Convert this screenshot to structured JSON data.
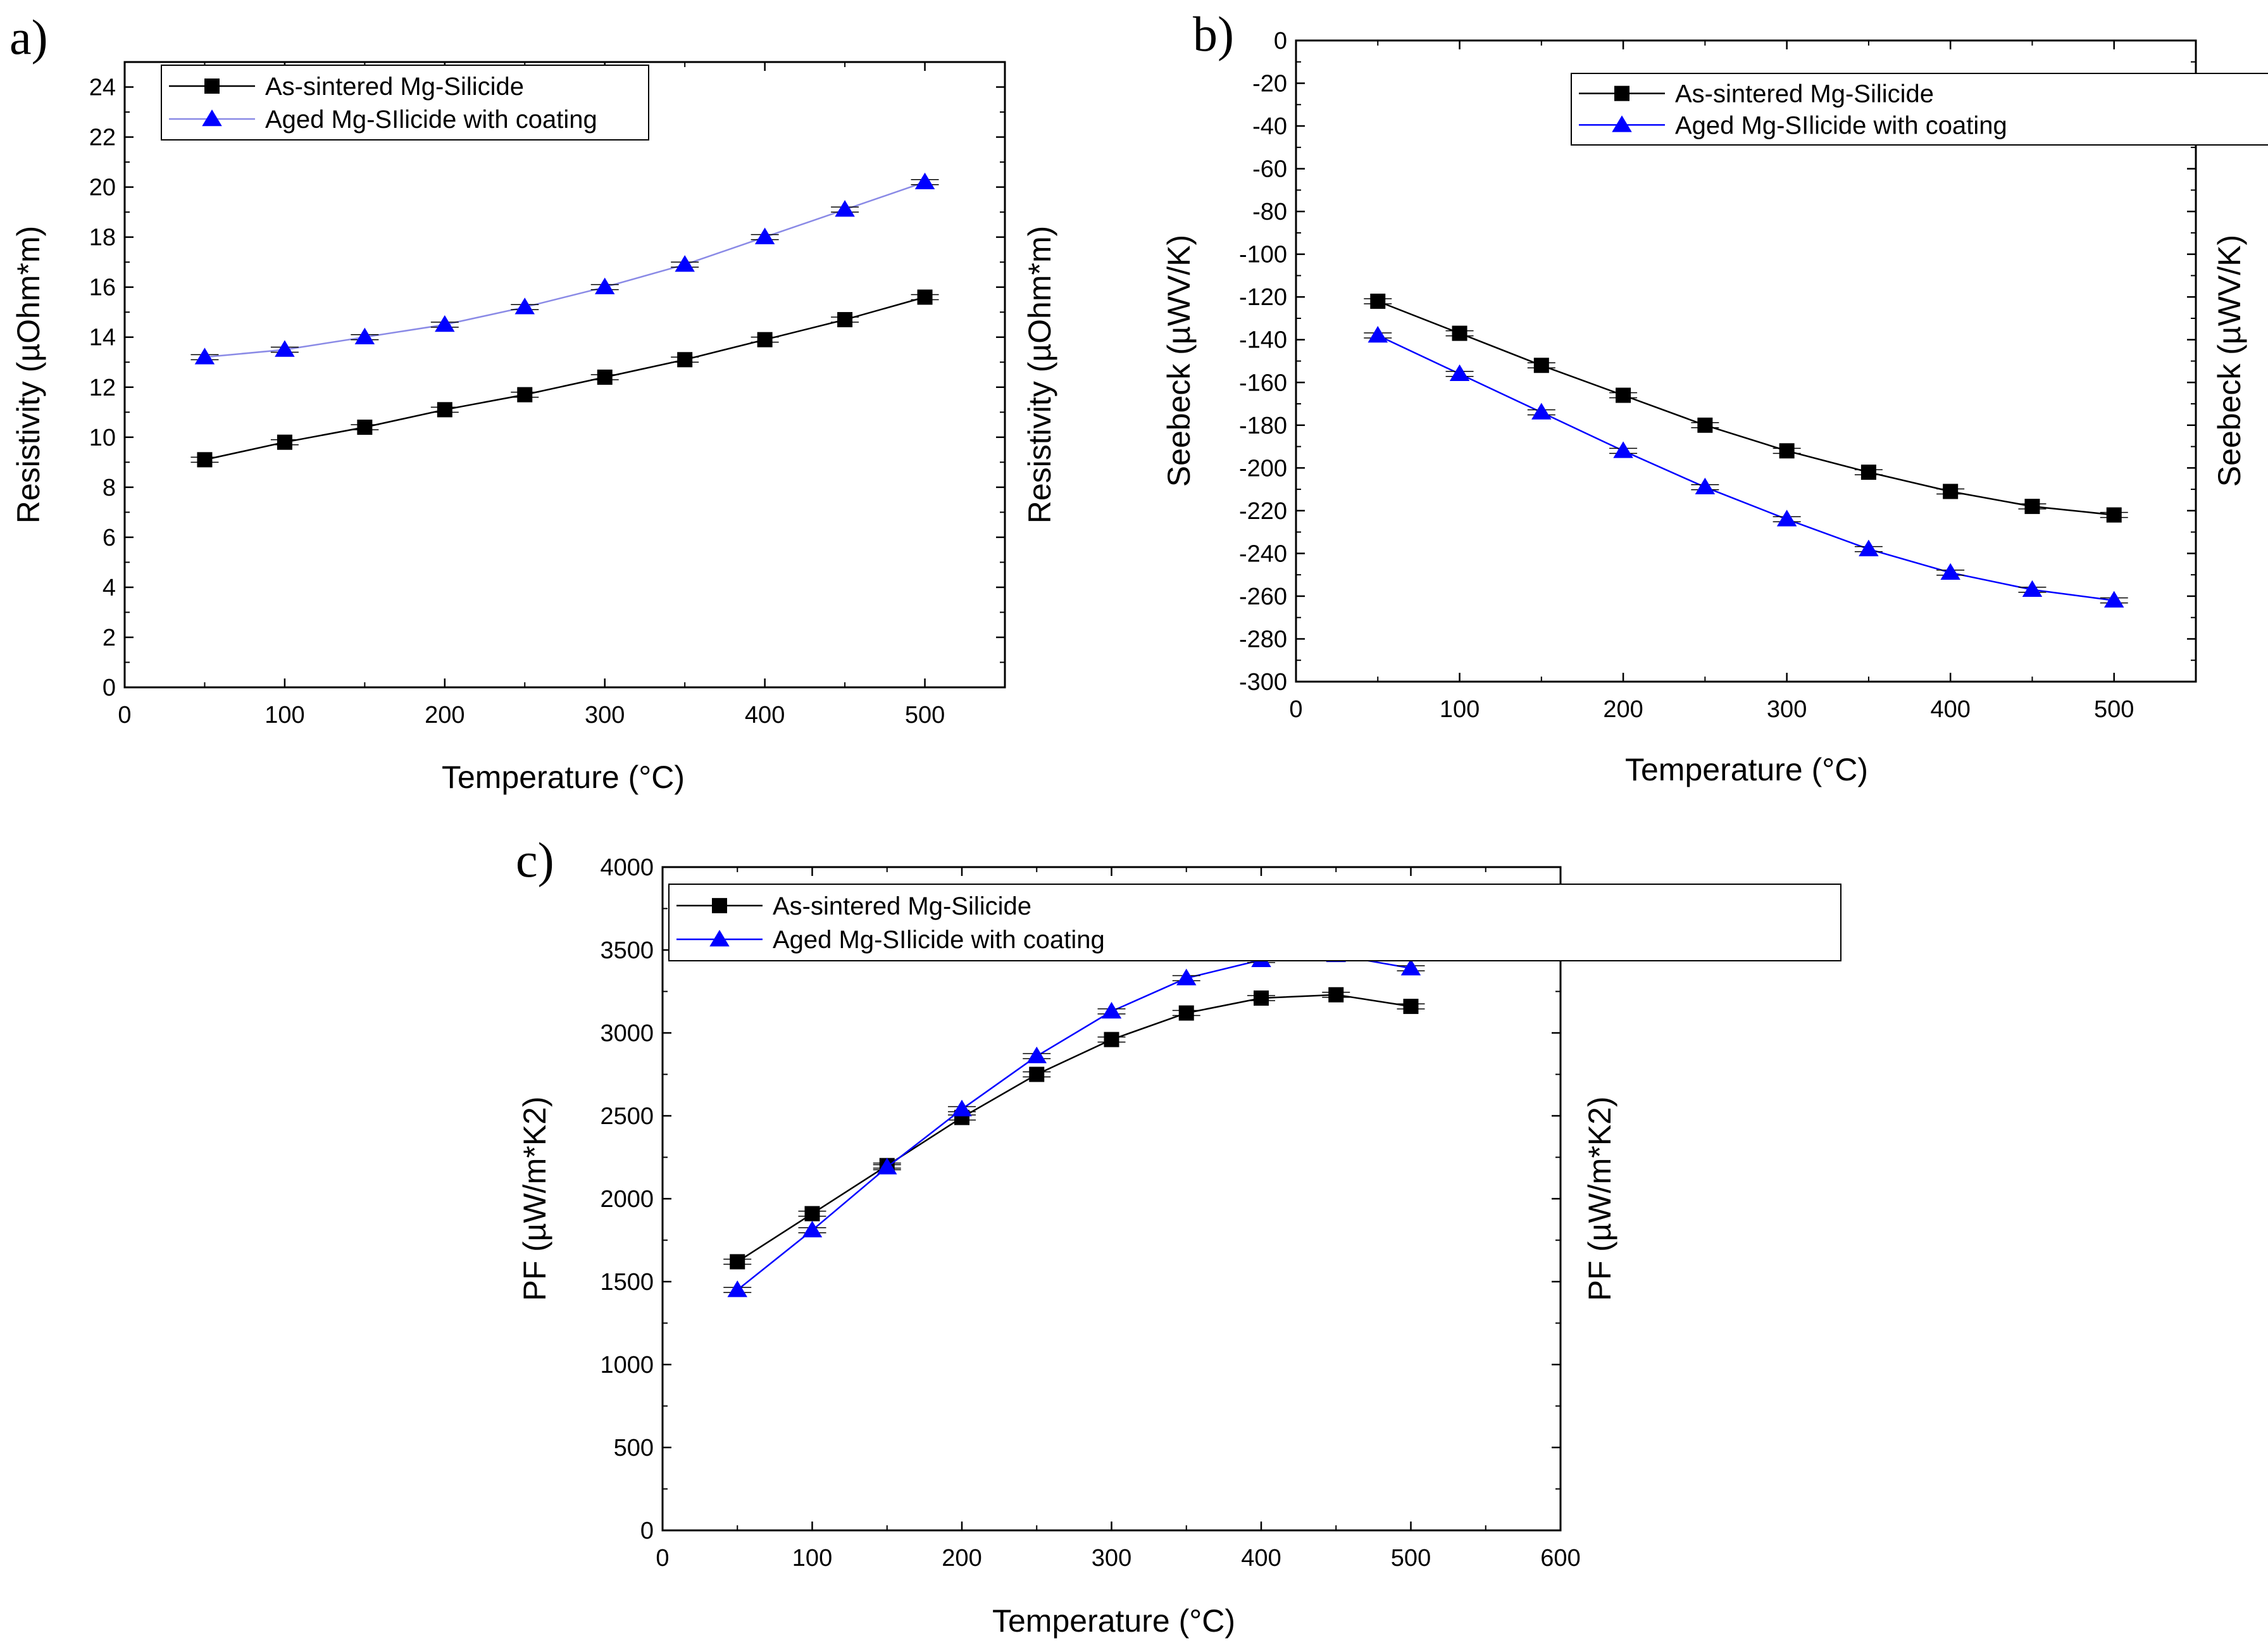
{
  "chart_data": [
    {
      "panel": "a)",
      "type": "line",
      "xlabel": "Temperature (°C)",
      "ylabel": "Resistivity (µOhm*m)",
      "ylabel_right": "Resistivity (µOhm*m)",
      "xlim": [
        0,
        550
      ],
      "ylim": [
        0,
        25
      ],
      "xticks": [
        0,
        100,
        200,
        300,
        400,
        500
      ],
      "yticks": [
        0,
        2,
        4,
        6,
        8,
        10,
        12,
        14,
        16,
        18,
        20,
        22,
        24
      ],
      "legend_position": "top-left",
      "x": [
        50,
        100,
        150,
        200,
        250,
        300,
        350,
        400,
        450,
        500
      ],
      "series": [
        {
          "name": "As-sintered Mg-Silicide",
          "marker": "square",
          "color": "#000000",
          "values": [
            9.1,
            9.8,
            10.4,
            11.1,
            11.7,
            12.4,
            13.1,
            13.9,
            14.7,
            15.6
          ]
        },
        {
          "name": "Aged Mg-SIlicide with coating",
          "marker": "triangle",
          "color": "#0000ff",
          "line_color": "#8a8ae6",
          "values": [
            13.2,
            13.5,
            14.0,
            14.5,
            15.2,
            16.0,
            16.9,
            18.0,
            19.1,
            20.2
          ]
        }
      ]
    },
    {
      "panel": "b)",
      "type": "line",
      "xlabel": "Temperature (°C)",
      "ylabel": "Seebeck (µWV/K)",
      "ylabel_right": "Seebeck (µWV/K)",
      "xlim": [
        0,
        550
      ],
      "ylim": [
        -300,
        0
      ],
      "xticks": [
        0,
        100,
        200,
        300,
        400,
        500
      ],
      "yticks": [
        0,
        -20,
        -40,
        -60,
        -80,
        -100,
        -120,
        -140,
        -160,
        -180,
        -200,
        -220,
        -240,
        -260,
        -280,
        -300
      ],
      "legend_position": "top-right",
      "x": [
        50,
        100,
        150,
        200,
        250,
        300,
        350,
        400,
        450,
        500
      ],
      "series": [
        {
          "name": "As-sintered Mg-Silicide",
          "marker": "square",
          "color": "#000000",
          "values": [
            -122,
            -137,
            -152,
            -166,
            -180,
            -192,
            -202,
            -211,
            -218,
            -222
          ]
        },
        {
          "name": "Aged Mg-SIlicide with coating",
          "marker": "triangle",
          "color": "#0000ff",
          "line_color": "#0000ff",
          "values": [
            -138,
            -156,
            -174,
            -192,
            -209,
            -224,
            -238,
            -249,
            -257,
            -262
          ]
        }
      ]
    },
    {
      "panel": "c)",
      "type": "line",
      "xlabel": "Temperature (°C)",
      "ylabel": "PF (µW/m*K2)",
      "ylabel_right": "PF (µW/m*K2)",
      "xlim": [
        0,
        600
      ],
      "ylim": [
        0,
        4000
      ],
      "xticks": [
        0,
        100,
        200,
        300,
        400,
        500,
        600
      ],
      "yticks": [
        0,
        500,
        1000,
        1500,
        2000,
        2500,
        3000,
        3500,
        4000
      ],
      "legend_position": "top-left",
      "x": [
        50,
        100,
        150,
        200,
        250,
        300,
        350,
        400,
        450,
        500
      ],
      "series": [
        {
          "name": "As-sintered Mg-Silicide",
          "marker": "square",
          "color": "#000000",
          "values": [
            1620,
            1910,
            2200,
            2490,
            2750,
            2960,
            3120,
            3210,
            3230,
            3160
          ]
        },
        {
          "name": "Aged Mg-SIlicide with coating",
          "marker": "triangle",
          "color": "#0000ff",
          "line_color": "#0000ff",
          "values": [
            1450,
            1810,
            2190,
            2540,
            2860,
            3130,
            3330,
            3440,
            3470,
            3390
          ]
        }
      ]
    }
  ]
}
